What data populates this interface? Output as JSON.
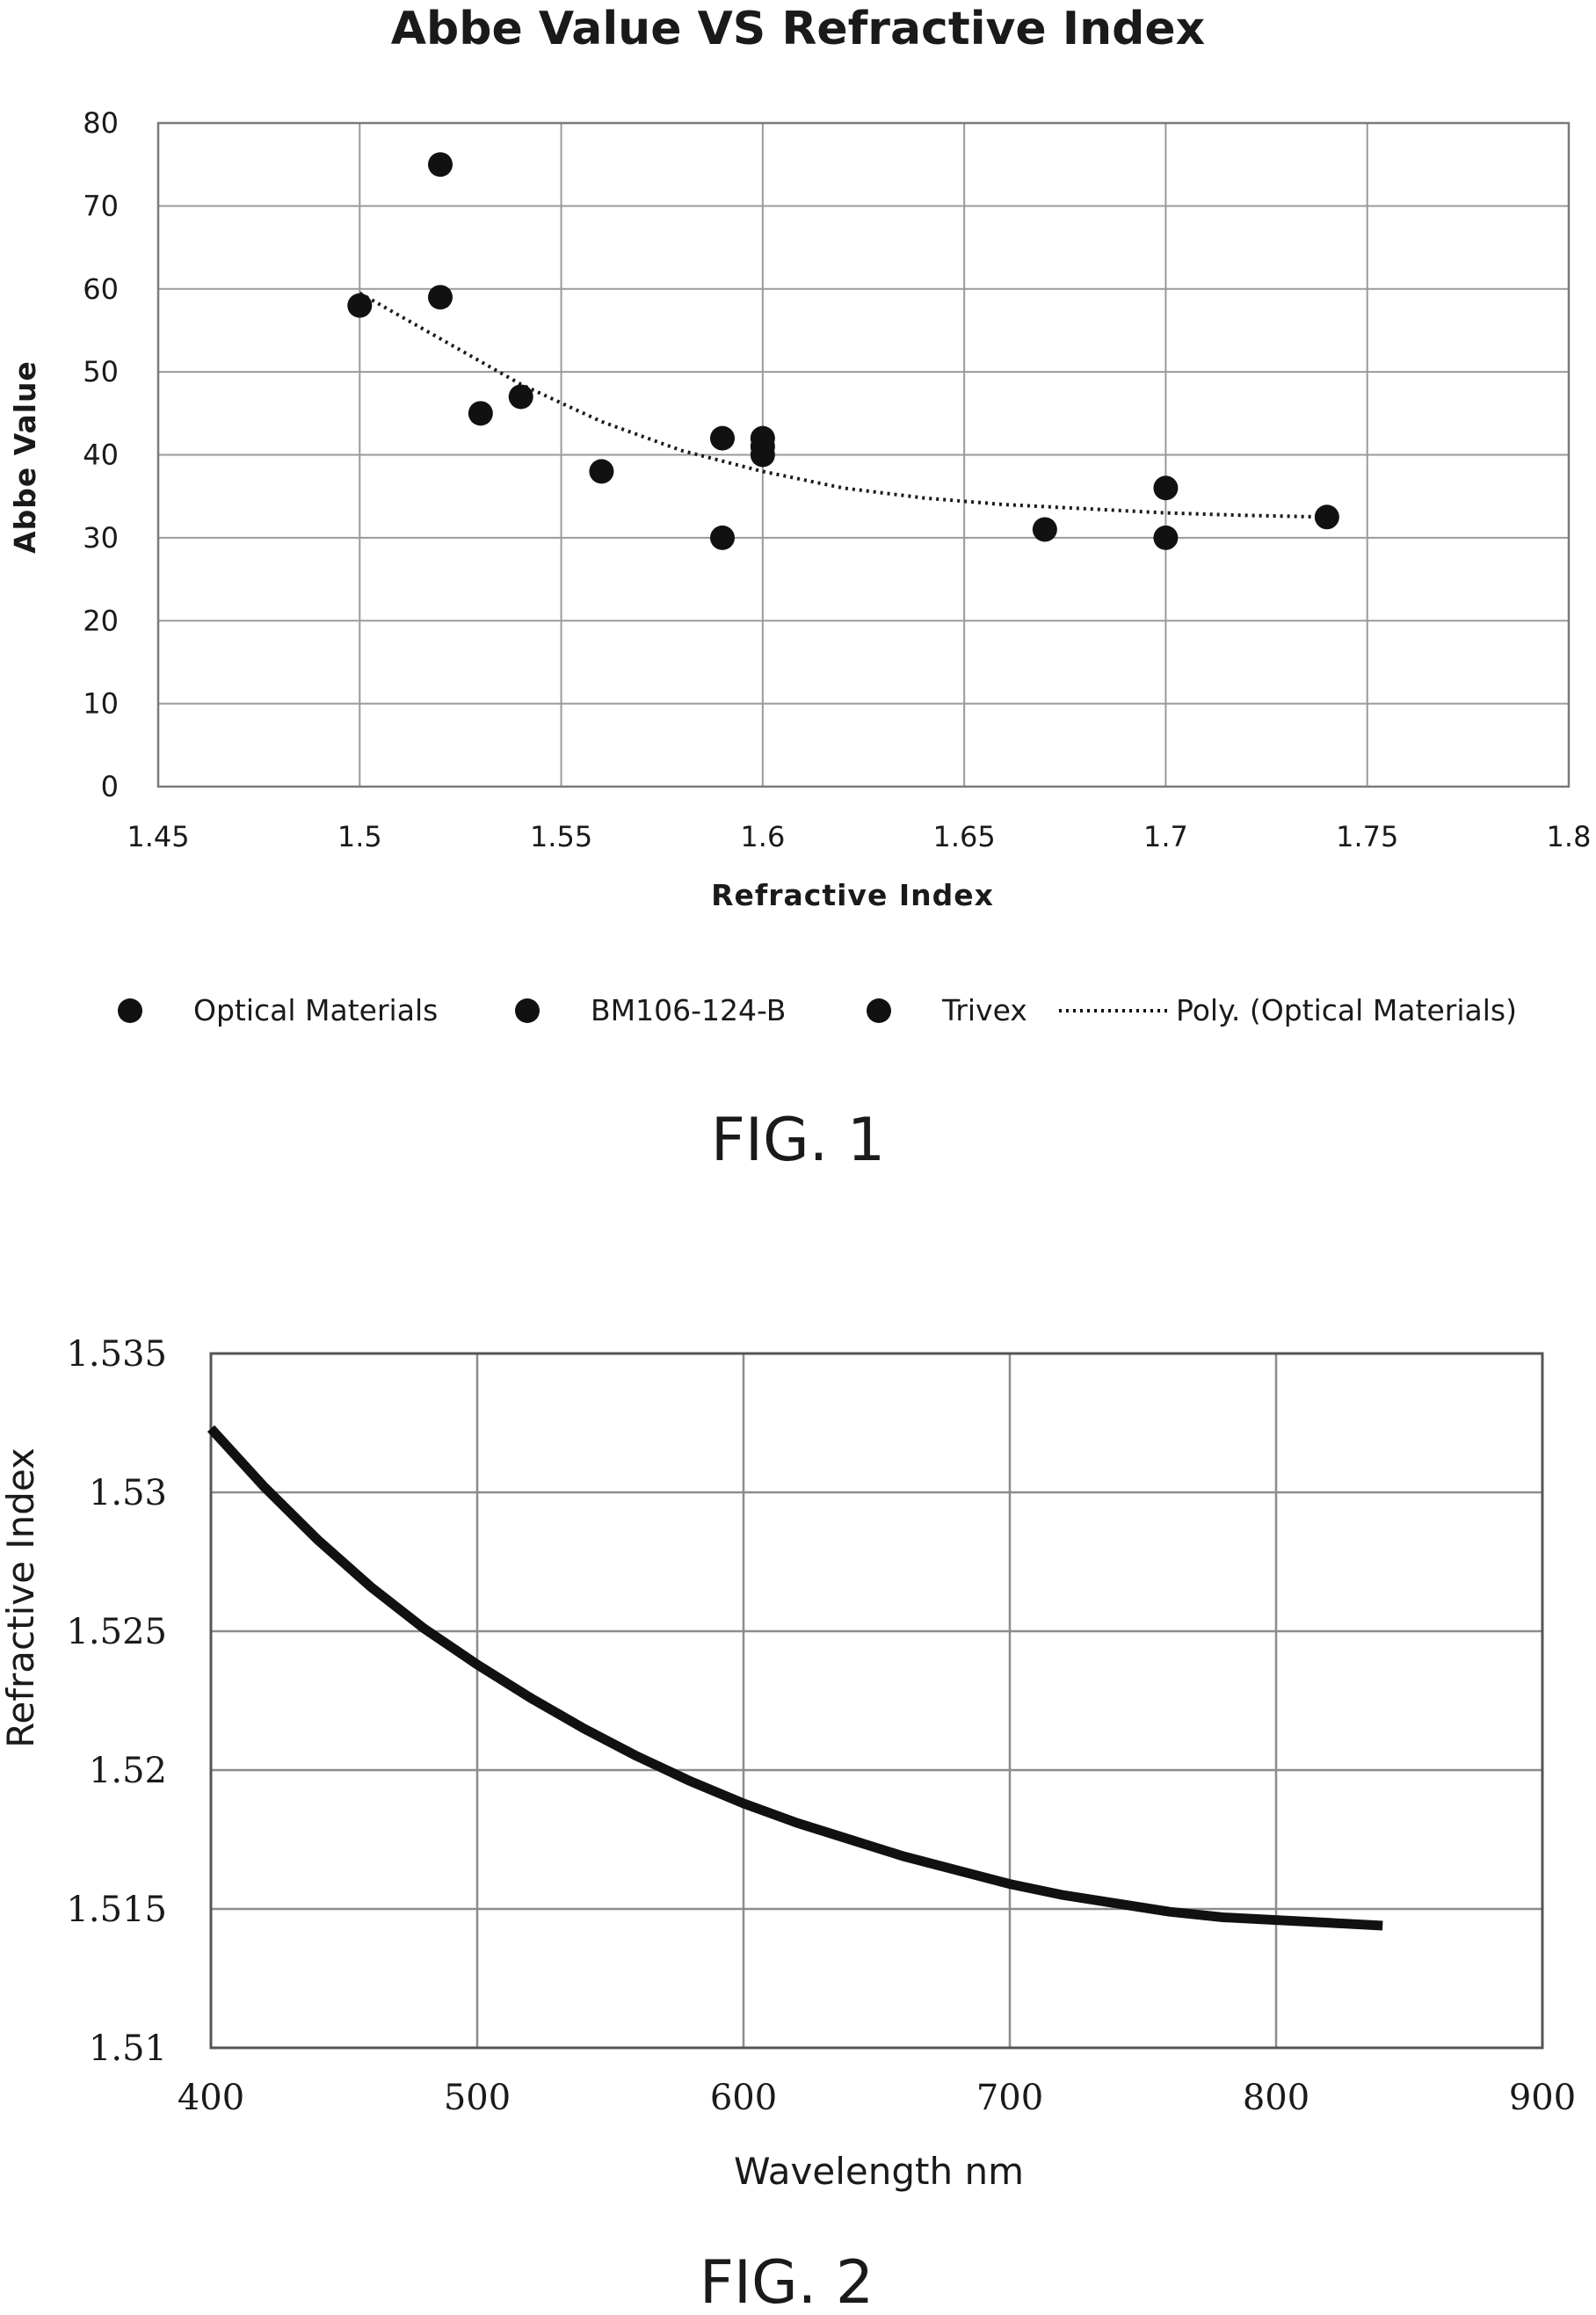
{
  "figures": [
    {
      "caption": "FIG. 1"
    },
    {
      "caption": "FIG. 2"
    }
  ],
  "chart_data": [
    {
      "type": "scatter",
      "title": "Abbe Value VS Refractive Index",
      "xlabel": "Refractive Index",
      "ylabel": "Abbe Value",
      "xlim": [
        1.45,
        1.8
      ],
      "ylim": [
        0,
        80
      ],
      "xticks": [
        "1.45",
        "1.5",
        "1.55",
        "1.6",
        "1.65",
        "1.7",
        "1.75",
        "1.8"
      ],
      "yticks": [
        "0",
        "10",
        "20",
        "30",
        "40",
        "50",
        "60",
        "70",
        "80"
      ],
      "grid": true,
      "legend_position": "bottom",
      "series": [
        {
          "name": "Optical Materials",
          "color": "#111111",
          "points": [
            {
              "x": 1.5,
              "y": 58
            },
            {
              "x": 1.52,
              "y": 59
            },
            {
              "x": 1.53,
              "y": 45
            },
            {
              "x": 1.54,
              "y": 47
            },
            {
              "x": 1.56,
              "y": 38
            },
            {
              "x": 1.59,
              "y": 42
            },
            {
              "x": 1.59,
              "y": 30
            },
            {
              "x": 1.6,
              "y": 42
            },
            {
              "x": 1.6,
              "y": 40
            },
            {
              "x": 1.67,
              "y": 31
            },
            {
              "x": 1.7,
              "y": 36
            },
            {
              "x": 1.7,
              "y": 30
            },
            {
              "x": 1.74,
              "y": 32.5
            }
          ]
        },
        {
          "name": "BM106-124-B",
          "color": "#111111",
          "points": [
            {
              "x": 1.52,
              "y": 75
            }
          ]
        },
        {
          "name": "Trivex",
          "color": "#111111",
          "points": [
            {
              "x": 1.6,
              "y": 41
            }
          ]
        }
      ],
      "trendline": {
        "name": "Poly. (Optical Materials)",
        "style": "dotted",
        "points": [
          {
            "x": 1.5,
            "y": 59.5
          },
          {
            "x": 1.52,
            "y": 54
          },
          {
            "x": 1.54,
            "y": 48.5
          },
          {
            "x": 1.56,
            "y": 44
          },
          {
            "x": 1.58,
            "y": 40.5
          },
          {
            "x": 1.6,
            "y": 38
          },
          {
            "x": 1.62,
            "y": 36
          },
          {
            "x": 1.64,
            "y": 34.8
          },
          {
            "x": 1.66,
            "y": 34
          },
          {
            "x": 1.68,
            "y": 33.5
          },
          {
            "x": 1.7,
            "y": 33
          },
          {
            "x": 1.72,
            "y": 32.7
          },
          {
            "x": 1.74,
            "y": 32.5
          }
        ]
      }
    },
    {
      "type": "line",
      "title": "",
      "xlabel": "Wavelength nm",
      "ylabel": "Refractive Index",
      "xlim": [
        400,
        900
      ],
      "ylim": [
        1.51,
        1.535
      ],
      "xticks": [
        "400",
        "500",
        "600",
        "700",
        "800",
        "900"
      ],
      "yticks": [
        "1.51",
        "1.515",
        "1.52",
        "1.525",
        "1.53",
        "1.535"
      ],
      "grid": true,
      "series": [
        {
          "color": "#111111",
          "x": [
            400,
            420,
            440,
            460,
            480,
            500,
            520,
            540,
            560,
            580,
            600,
            620,
            640,
            660,
            680,
            700,
            720,
            740,
            760,
            780,
            800,
            820,
            840
          ],
          "y": [
            1.5323,
            1.5302,
            1.5283,
            1.5266,
            1.5251,
            1.5238,
            1.5226,
            1.5215,
            1.5205,
            1.5196,
            1.5188,
            1.5181,
            1.5175,
            1.5169,
            1.5164,
            1.5159,
            1.5155,
            1.5152,
            1.5149,
            1.5147,
            1.5146,
            1.5145,
            1.5144
          ]
        }
      ]
    }
  ]
}
